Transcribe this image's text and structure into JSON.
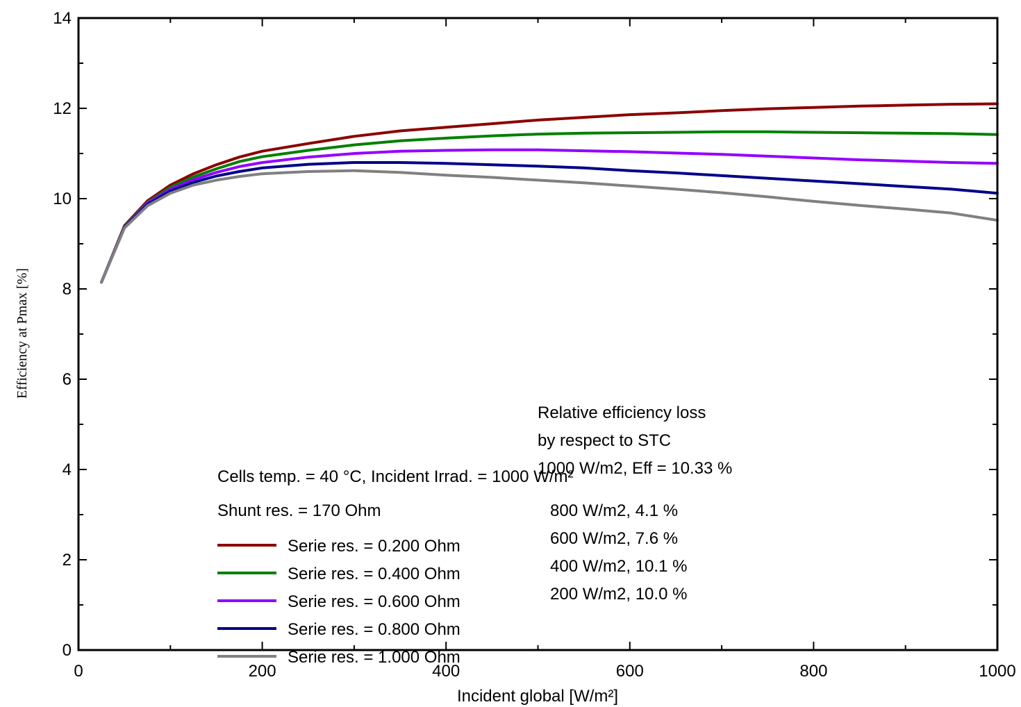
{
  "chart_data": {
    "type": "line",
    "title": "",
    "xlabel": "Incident global [W/m²]",
    "ylabel": "Efficiency at Pmax [%]",
    "xlim": [
      0,
      1000
    ],
    "ylim": [
      0,
      14
    ],
    "xticks": [
      0,
      200,
      400,
      600,
      800,
      1000
    ],
    "yticks": [
      0,
      2,
      4,
      6,
      8,
      10,
      12,
      14
    ],
    "grid": false,
    "legend_position": "bottom-left",
    "conditions": [
      "Cells temp. = 40 °C,  Incident Irrad. = 1000 W/m²",
      "Shunt res. = 170 Ohm"
    ],
    "loss_box": {
      "title_lines": [
        "Relative efficiency loss",
        "by respect to STC"
      ],
      "stc_line": "1000 W/m2, Eff = 10.33 %",
      "rows": [
        "800 W/m2,  4.1 %",
        "600 W/m2,  7.6 %",
        "400 W/m2,  10.1 %",
        "200 W/m2,  10.0 %"
      ]
    },
    "x": [
      25,
      50,
      75,
      100,
      125,
      150,
      175,
      200,
      250,
      300,
      350,
      400,
      450,
      500,
      550,
      600,
      650,
      700,
      750,
      800,
      850,
      900,
      950,
      1000
    ],
    "series": [
      {
        "name": "Serie res. = 0.200 Ohm",
        "color": "#8b0000",
        "values": [
          8.15,
          9.4,
          9.95,
          10.3,
          10.55,
          10.75,
          10.92,
          11.05,
          11.22,
          11.38,
          11.5,
          11.58,
          11.66,
          11.74,
          11.8,
          11.86,
          11.9,
          11.95,
          11.99,
          12.02,
          12.05,
          12.07,
          12.09,
          12.1
        ]
      },
      {
        "name": "Serie res. = 0.400 Ohm",
        "color": "#008000",
        "values": [
          8.15,
          9.38,
          9.92,
          10.25,
          10.48,
          10.66,
          10.82,
          10.93,
          11.07,
          11.19,
          11.28,
          11.34,
          11.39,
          11.43,
          11.45,
          11.46,
          11.47,
          11.48,
          11.48,
          11.47,
          11.46,
          11.45,
          11.44,
          11.42
        ]
      },
      {
        "name": "Serie res. = 0.600 Ohm",
        "color": "#9400ff",
        "values": [
          8.15,
          9.37,
          9.9,
          10.21,
          10.42,
          10.58,
          10.71,
          10.8,
          10.92,
          11.0,
          11.05,
          11.07,
          11.08,
          11.08,
          11.06,
          11.04,
          11.01,
          10.98,
          10.94,
          10.9,
          10.86,
          10.83,
          10.8,
          10.78
        ]
      },
      {
        "name": "Serie res. = 0.800 Ohm",
        "color": "#00008b",
        "values": [
          8.15,
          9.36,
          9.87,
          10.17,
          10.36,
          10.5,
          10.6,
          10.68,
          10.76,
          10.8,
          10.8,
          10.78,
          10.75,
          10.72,
          10.68,
          10.62,
          10.57,
          10.51,
          10.45,
          10.39,
          10.33,
          10.27,
          10.21,
          10.12
        ]
      },
      {
        "name": "Serie res. = 1.000 Ohm",
        "color": "#808080",
        "values": [
          8.15,
          9.35,
          9.84,
          10.12,
          10.3,
          10.41,
          10.49,
          10.55,
          10.6,
          10.62,
          10.58,
          10.52,
          10.47,
          10.41,
          10.35,
          10.28,
          10.21,
          10.13,
          10.04,
          9.94,
          9.85,
          9.77,
          9.68,
          9.52
        ]
      }
    ]
  }
}
